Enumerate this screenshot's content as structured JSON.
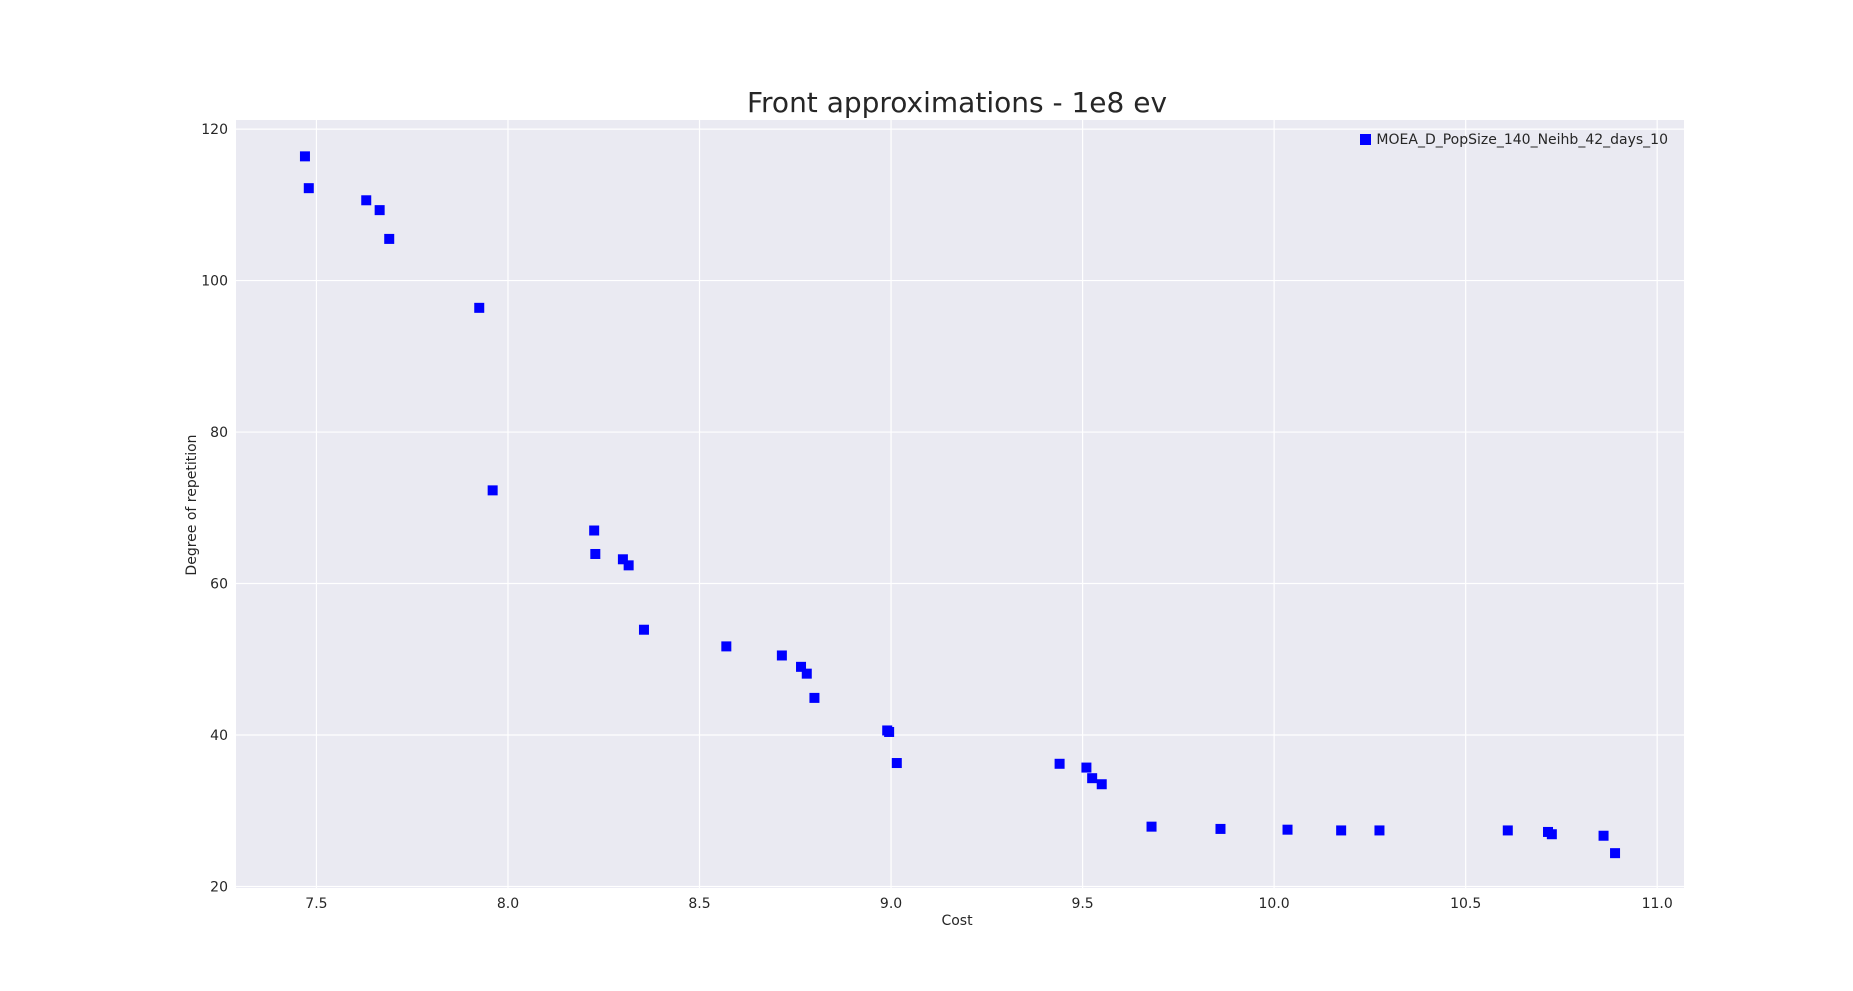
{
  "chart_data": {
    "type": "scatter",
    "title": "Front approximations - 1e8 ev",
    "xlabel": "Cost",
    "ylabel": "Degree of repetition",
    "xlim": [
      7.29,
      11.07
    ],
    "ylim": [
      19.8,
      121.2
    ],
    "xticks": [
      7.5,
      8.0,
      8.5,
      9.0,
      9.5,
      10.0,
      10.5,
      11.0
    ],
    "xtick_labels": [
      "7.5",
      "8.0",
      "8.5",
      "9.0",
      "9.5",
      "10.0",
      "10.5",
      "11.0"
    ],
    "yticks": [
      20,
      40,
      60,
      80,
      100,
      120
    ],
    "ytick_labels": [
      "20",
      "40",
      "60",
      "80",
      "100",
      "120"
    ],
    "grid": true,
    "legend_position": "top-right",
    "marker": "square",
    "colors": {
      "points": "#0000ff",
      "axes_background": "#eaeaf2",
      "grid": "#ffffff",
      "text": "#262626"
    },
    "series": [
      {
        "name": "MOEA_D_PopSize_140_Neihb_42_days_10",
        "color": "#0000ff",
        "points": [
          {
            "x": 7.47,
            "y": 116.4
          },
          {
            "x": 7.48,
            "y": 112.2
          },
          {
            "x": 7.63,
            "y": 110.6
          },
          {
            "x": 7.665,
            "y": 109.3
          },
          {
            "x": 7.69,
            "y": 105.5
          },
          {
            "x": 7.925,
            "y": 96.4
          },
          {
            "x": 7.96,
            "y": 72.3
          },
          {
            "x": 8.225,
            "y": 67.0
          },
          {
            "x": 8.228,
            "y": 63.9
          },
          {
            "x": 8.3,
            "y": 63.2
          },
          {
            "x": 8.315,
            "y": 62.4
          },
          {
            "x": 8.355,
            "y": 53.9
          },
          {
            "x": 8.57,
            "y": 51.7
          },
          {
            "x": 8.715,
            "y": 50.5
          },
          {
            "x": 8.765,
            "y": 49.0
          },
          {
            "x": 8.78,
            "y": 48.1
          },
          {
            "x": 8.8,
            "y": 44.9
          },
          {
            "x": 8.99,
            "y": 40.6
          },
          {
            "x": 8.995,
            "y": 40.4
          },
          {
            "x": 9.015,
            "y": 36.3
          },
          {
            "x": 9.44,
            "y": 36.2
          },
          {
            "x": 9.51,
            "y": 35.7
          },
          {
            "x": 9.525,
            "y": 34.3
          },
          {
            "x": 9.55,
            "y": 33.5
          },
          {
            "x": 9.68,
            "y": 27.9
          },
          {
            "x": 9.86,
            "y": 27.6
          },
          {
            "x": 10.035,
            "y": 27.5
          },
          {
            "x": 10.175,
            "y": 27.4
          },
          {
            "x": 10.275,
            "y": 27.4
          },
          {
            "x": 10.61,
            "y": 27.4
          },
          {
            "x": 10.715,
            "y": 27.2
          },
          {
            "x": 10.725,
            "y": 26.9
          },
          {
            "x": 10.86,
            "y": 26.7
          },
          {
            "x": 10.89,
            "y": 24.4
          }
        ]
      }
    ]
  }
}
